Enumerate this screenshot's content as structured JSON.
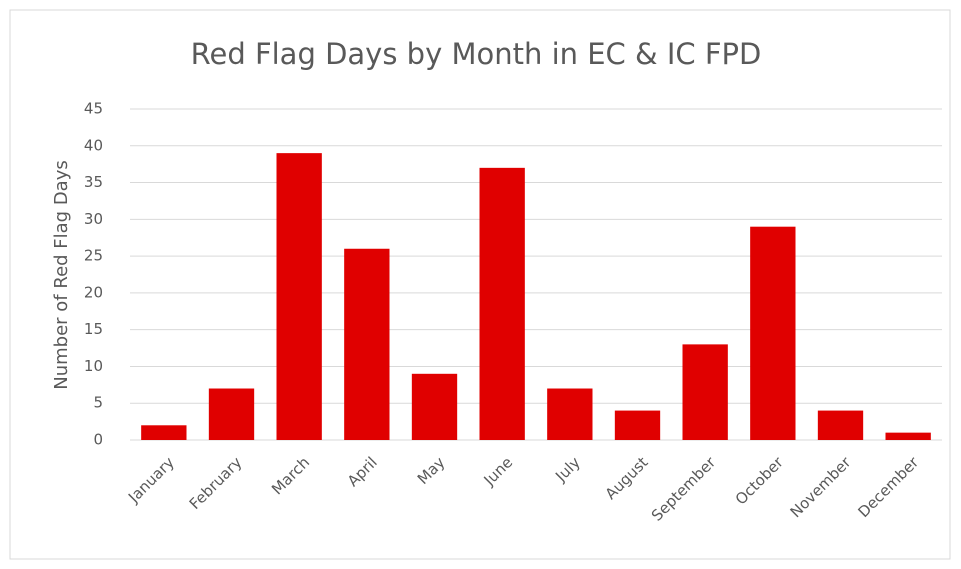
{
  "chart_data": {
    "type": "bar",
    "title": "Red Flag Days by Month in EC & IC FPD",
    "y_label": "Number of Red Flag Days",
    "categories": [
      "January",
      "February",
      "March",
      "April",
      "May",
      "June",
      "July",
      "August",
      "September",
      "October",
      "November",
      "December"
    ],
    "values": [
      2,
      7,
      39,
      26,
      9,
      37,
      7,
      4,
      13,
      29,
      4,
      1
    ],
    "color": "#e00000",
    "ylim": [
      0,
      45
    ],
    "yticks": [
      0,
      5,
      10,
      15,
      20,
      25,
      30,
      35,
      40,
      45
    ],
    "grid": true
  }
}
